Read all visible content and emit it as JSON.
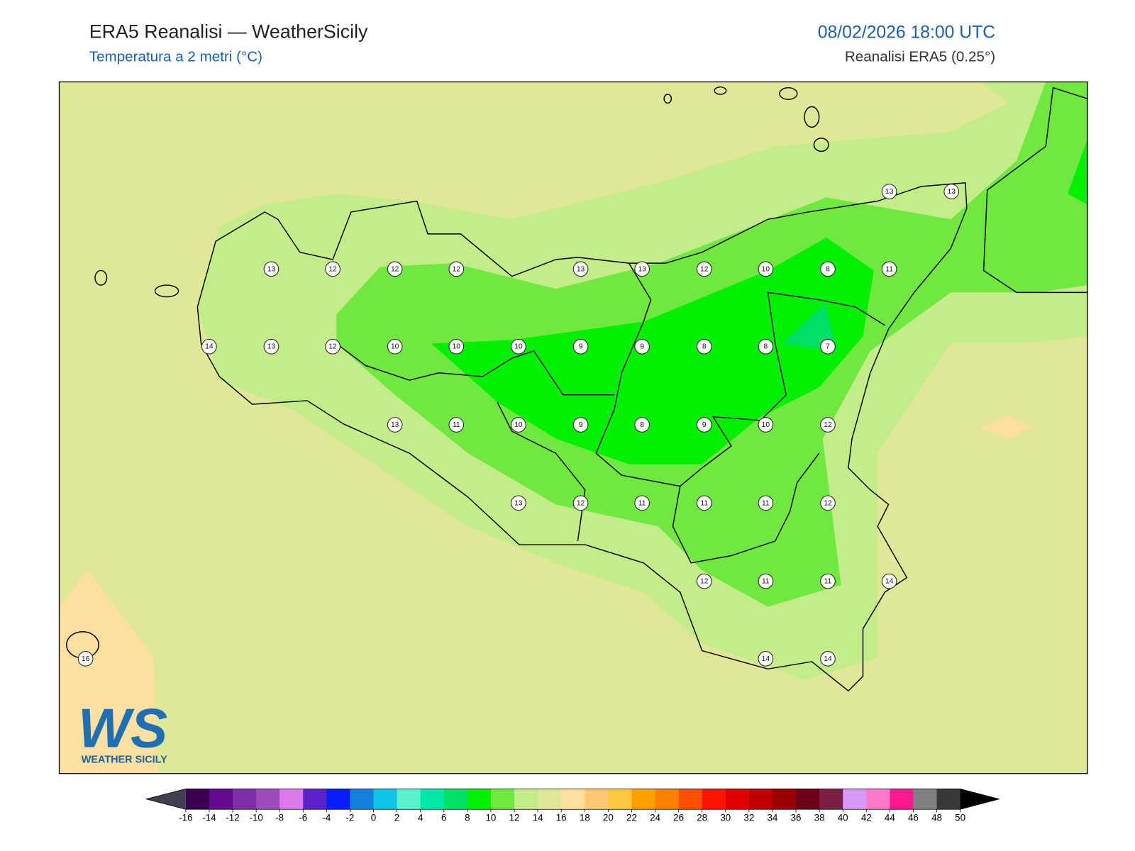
{
  "header": {
    "title": "ERA5 Reanalisi — WeatherSicily",
    "subtitle": "Temperatura a 2 metri (°C)",
    "date": "08/02/2026 18:00 UTC",
    "source": "Reanalisi ERA5 (0.25°)"
  },
  "map": {
    "station_values": [
      13,
      13,
      13,
      12,
      12,
      12,
      13,
      13,
      12,
      10,
      8,
      11,
      14,
      13,
      12,
      10,
      10,
      10,
      9,
      9,
      8,
      8,
      7,
      13,
      11,
      10,
      9,
      8,
      9,
      10,
      12,
      13,
      12,
      11,
      11,
      11,
      12,
      12,
      11,
      11,
      14,
      16,
      14,
      14
    ]
  },
  "colorbar": {
    "ticks": [
      -16,
      -14,
      -12,
      -10,
      -8,
      -6,
      -4,
      -2,
      0,
      2,
      4,
      6,
      8,
      10,
      12,
      14,
      16,
      18,
      20,
      22,
      24,
      26,
      28,
      30,
      32,
      34,
      36,
      38,
      40,
      42,
      44,
      46,
      48,
      50
    ],
    "colors": [
      "#3c0050",
      "#620a90",
      "#7e2ea6",
      "#9c4cbc",
      "#dc78ec",
      "#5a22c8",
      "#0a1cfa",
      "#1480dc",
      "#10c4e8",
      "#5af0d0",
      "#00e8a8",
      "#00e064",
      "#00f000",
      "#70e840",
      "#c4ec88",
      "#e0e898",
      "#fde0a0",
      "#fcc872",
      "#fcc840",
      "#fca000",
      "#fc8000",
      "#fc5000",
      "#fc1400",
      "#e00000",
      "#c00000",
      "#9a0000",
      "#700018",
      "#7a2044",
      "#d898f8",
      "#fc78c8",
      "#fc1890",
      "#808080",
      "#383838"
    ],
    "under_color": "#404050",
    "over_color": "#000000"
  },
  "logo": {
    "mark": "WS",
    "text": "WEATHER SICILY"
  }
}
